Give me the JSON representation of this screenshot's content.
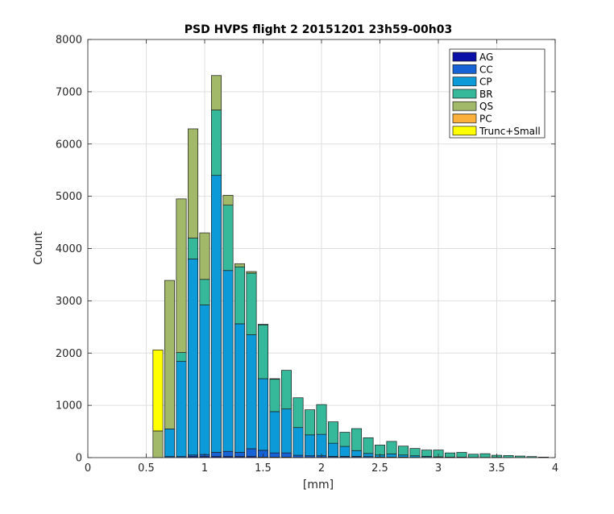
{
  "chart_data": {
    "type": "bar",
    "stacked": true,
    "title": "PSD HVPS  flight 2 20151201 23h59-00h03",
    "xlabel": "[mm]",
    "ylabel": "Count",
    "xlim": [
      0,
      4
    ],
    "ylim": [
      0,
      8000
    ],
    "xticks": [
      "0",
      "0.5",
      "1",
      "1.5",
      "2",
      "2.5",
      "3",
      "3.5",
      "4"
    ],
    "yticks": [
      "0",
      "1000",
      "2000",
      "3000",
      "4000",
      "5000",
      "6000",
      "7000",
      "8000"
    ],
    "grid": true,
    "legend_position": "top-right",
    "bin_width": 0.1,
    "x": [
      0.6,
      0.7,
      0.8,
      0.9,
      1.0,
      1.1,
      1.2,
      1.3,
      1.4,
      1.5,
      1.6,
      1.7,
      1.8,
      1.9,
      2.0,
      2.1,
      2.2,
      2.3,
      2.4,
      2.5,
      2.6,
      2.7,
      2.8,
      2.9,
      3.0,
      3.1,
      3.2,
      3.3,
      3.4,
      3.5,
      3.6,
      3.7,
      3.8,
      3.9
    ],
    "series": [
      {
        "name": "AG",
        "color": "#0b0fa8",
        "values": [
          0,
          0,
          0,
          20,
          20,
          20,
          20,
          20,
          20,
          10,
          10,
          10,
          5,
          5,
          5,
          5,
          5,
          5,
          0,
          0,
          0,
          0,
          0,
          0,
          0,
          0,
          0,
          0,
          0,
          0,
          0,
          0,
          0,
          0
        ]
      },
      {
        "name": "CC",
        "color": "#1763d6",
        "values": [
          0,
          20,
          20,
          30,
          40,
          80,
          100,
          80,
          150,
          130,
          80,
          80,
          40,
          30,
          30,
          20,
          20,
          20,
          20,
          10,
          10,
          10,
          5,
          5,
          5,
          0,
          0,
          0,
          0,
          0,
          0,
          0,
          0,
          0
        ]
      },
      {
        "name": "CP",
        "color": "#0d9ad8",
        "values": [
          0,
          530,
          1820,
          3750,
          2860,
          5300,
          3460,
          2460,
          2180,
          1370,
          790,
          840,
          530,
          400,
          410,
          250,
          190,
          110,
          60,
          40,
          60,
          40,
          30,
          20,
          10,
          10,
          10,
          5,
          5,
          5,
          0,
          0,
          0,
          0
        ]
      },
      {
        "name": "BR",
        "color": "#36b99b",
        "values": [
          0,
          0,
          170,
          400,
          490,
          1250,
          1250,
          1090,
          1180,
          1030,
          620,
          740,
          570,
          480,
          570,
          410,
          270,
          420,
          300,
          190,
          240,
          170,
          140,
          120,
          130,
          80,
          90,
          60,
          70,
          40,
          40,
          30,
          20,
          10
        ]
      },
      {
        "name": "QS",
        "color": "#a3b96a",
        "values": [
          510,
          2840,
          2940,
          2090,
          890,
          660,
          190,
          60,
          30,
          10,
          10,
          0,
          0,
          0,
          0,
          0,
          0,
          0,
          0,
          0,
          0,
          0,
          0,
          0,
          0,
          0,
          0,
          0,
          0,
          0,
          0,
          0,
          0,
          0
        ]
      },
      {
        "name": "PC",
        "color": "#fbb03b",
        "values": [
          0,
          0,
          0,
          0,
          0,
          0,
          0,
          0,
          0,
          0,
          0,
          0,
          0,
          0,
          0,
          0,
          0,
          0,
          0,
          0,
          0,
          0,
          0,
          0,
          0,
          0,
          0,
          0,
          0,
          0,
          0,
          0,
          0,
          0
        ]
      },
      {
        "name": "Trunc+Small",
        "color": "#ffff00",
        "values": [
          1550,
          0,
          0,
          0,
          0,
          0,
          0,
          0,
          0,
          0,
          0,
          0,
          0,
          0,
          0,
          0,
          0,
          0,
          0,
          0,
          0,
          0,
          0,
          0,
          0,
          0,
          0,
          0,
          0,
          0,
          0,
          0,
          0,
          0
        ]
      }
    ]
  }
}
